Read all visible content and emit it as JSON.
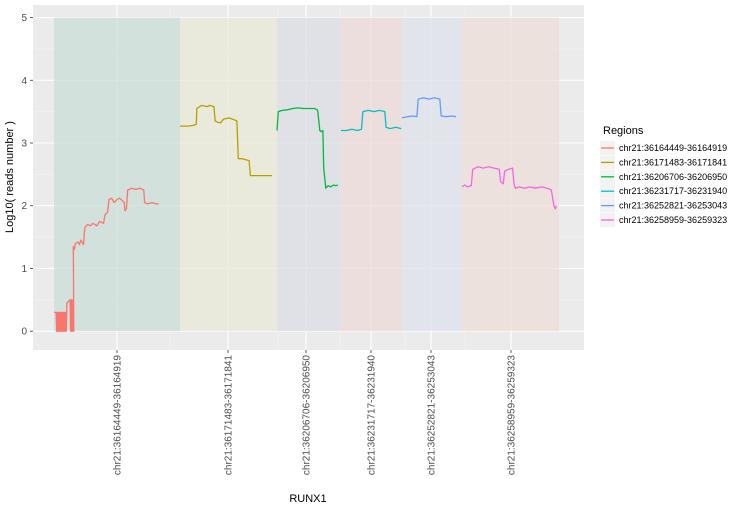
{
  "chart_data": {
    "type": "line",
    "title": "",
    "xlabel": "RUNX1",
    "ylabel": "Log10( reads number )",
    "ylim": [
      -0.3,
      5.2
    ],
    "yticks": [
      0,
      1,
      2,
      3,
      4,
      5
    ],
    "grid": true,
    "legend_title": "Regions",
    "legend_position": "right",
    "categories": [
      "chr21:36164449-36164919",
      "chr21:36171483-36171841",
      "chr21:36206706-36206950",
      "chr21:36231717-36231940",
      "chr21:36252821-36253043",
      "chr21:36258959-36259323"
    ],
    "series": [
      {
        "name": "chr21:36164449-36164919",
        "color": "#F8766D",
        "band_color": "#C9DDD7",
        "x_range": [
          0,
          470
        ],
        "points": [
          [
            0,
            0.3
          ],
          [
            8,
            0.3
          ],
          [
            10,
            0
          ],
          [
            12,
            0.3
          ],
          [
            14,
            0
          ],
          [
            16,
            0.3
          ],
          [
            18,
            0
          ],
          [
            20,
            0.3
          ],
          [
            22,
            0
          ],
          [
            24,
            0.3
          ],
          [
            26,
            0
          ],
          [
            28,
            0.3
          ],
          [
            30,
            0
          ],
          [
            32,
            0.3
          ],
          [
            34,
            0
          ],
          [
            36,
            0.3
          ],
          [
            38,
            0
          ],
          [
            40,
            0.3
          ],
          [
            42,
            0
          ],
          [
            44,
            0.3
          ],
          [
            46,
            0
          ],
          [
            48,
            0.45
          ],
          [
            60,
            0.5
          ],
          [
            62,
            0
          ],
          [
            64,
            0.5
          ],
          [
            66,
            0
          ],
          [
            68,
            0.5
          ],
          [
            70,
            0
          ],
          [
            72,
            0.3
          ],
          [
            74,
            0
          ],
          [
            72,
            1.35
          ],
          [
            76,
            1.3
          ],
          [
            80,
            1.4
          ],
          [
            90,
            1.42
          ],
          [
            95,
            1.38
          ],
          [
            100,
            1.45
          ],
          [
            110,
            1.38
          ],
          [
            115,
            1.65
          ],
          [
            125,
            1.7
          ],
          [
            135,
            1.68
          ],
          [
            145,
            1.72
          ],
          [
            160,
            1.68
          ],
          [
            170,
            1.75
          ],
          [
            185,
            1.72
          ],
          [
            190,
            1.85
          ],
          [
            200,
            1.9
          ],
          [
            205,
            2.1
          ],
          [
            215,
            2.12
          ],
          [
            225,
            2.05
          ],
          [
            235,
            2.1
          ],
          [
            245,
            2.12
          ],
          [
            255,
            2.08
          ],
          [
            262,
            2.05
          ],
          [
            265,
            1.92
          ],
          [
            270,
            1.95
          ],
          [
            275,
            2.25
          ],
          [
            290,
            2.28
          ],
          [
            305,
            2.26
          ],
          [
            320,
            2.28
          ],
          [
            335,
            2.25
          ],
          [
            338,
            2.05
          ],
          [
            350,
            2.03
          ],
          [
            365,
            2.05
          ],
          [
            380,
            2.03
          ],
          [
            390,
            2.03
          ]
        ]
      },
      {
        "name": "chr21:36171483-36171841",
        "color": "#B79F00",
        "band_color": "#E9E9D7",
        "x_range": [
          0,
          358
        ],
        "points": [
          [
            0,
            3.27
          ],
          [
            30,
            3.27
          ],
          [
            50,
            3.28
          ],
          [
            60,
            3.3
          ],
          [
            62,
            3.55
          ],
          [
            80,
            3.6
          ],
          [
            100,
            3.58
          ],
          [
            110,
            3.6
          ],
          [
            125,
            3.58
          ],
          [
            130,
            3.35
          ],
          [
            140,
            3.33
          ],
          [
            150,
            3.32
          ],
          [
            160,
            3.38
          ],
          [
            180,
            3.4
          ],
          [
            195,
            3.38
          ],
          [
            210,
            3.35
          ],
          [
            215,
            2.75
          ],
          [
            230,
            2.75
          ],
          [
            245,
            2.73
          ],
          [
            255,
            2.72
          ],
          [
            260,
            2.48
          ],
          [
            280,
            2.48
          ],
          [
            300,
            2.48
          ],
          [
            315,
            2.48
          ],
          [
            325,
            2.48
          ],
          [
            340,
            2.48
          ]
        ]
      },
      {
        "name": "chr21:36206706-36206950",
        "color": "#00BA38",
        "band_color": "#DCDDE5",
        "x_range": [
          0,
          244
        ],
        "points": [
          [
            0,
            3.2
          ],
          [
            5,
            3.5
          ],
          [
            20,
            3.52
          ],
          [
            40,
            3.53
          ],
          [
            60,
            3.55
          ],
          [
            80,
            3.56
          ],
          [
            100,
            3.55
          ],
          [
            120,
            3.55
          ],
          [
            145,
            3.55
          ],
          [
            155,
            3.52
          ],
          [
            163,
            3.2
          ],
          [
            168,
            3.18
          ],
          [
            175,
            3.2
          ],
          [
            178,
            2.6
          ],
          [
            182,
            2.45
          ],
          [
            186,
            2.28
          ],
          [
            195,
            2.32
          ],
          [
            205,
            2.3
          ],
          [
            215,
            2.33
          ],
          [
            225,
            2.32
          ],
          [
            232,
            2.33
          ]
        ]
      },
      {
        "name": "chr21:36231717-36231940",
        "color": "#00BFC4",
        "band_color": "#EEDADA",
        "x_range": [
          0,
          223
        ],
        "points": [
          [
            0,
            3.2
          ],
          [
            20,
            3.2
          ],
          [
            40,
            3.22
          ],
          [
            60,
            3.2
          ],
          [
            75,
            3.22
          ],
          [
            80,
            3.5
          ],
          [
            100,
            3.52
          ],
          [
            120,
            3.5
          ],
          [
            140,
            3.52
          ],
          [
            160,
            3.5
          ],
          [
            165,
            3.25
          ],
          [
            180,
            3.23
          ],
          [
            200,
            3.25
          ],
          [
            220,
            3.23
          ]
        ]
      },
      {
        "name": "chr21:36252821-36253043",
        "color": "#619CFF",
        "band_color": "#DDE1EA",
        "x_range": [
          0,
          222
        ],
        "points": [
          [
            0,
            3.4
          ],
          [
            20,
            3.42
          ],
          [
            40,
            3.43
          ],
          [
            55,
            3.42
          ],
          [
            60,
            3.7
          ],
          [
            80,
            3.72
          ],
          [
            100,
            3.7
          ],
          [
            120,
            3.72
          ],
          [
            140,
            3.7
          ],
          [
            145,
            3.43
          ],
          [
            165,
            3.42
          ],
          [
            185,
            3.43
          ],
          [
            200,
            3.42
          ]
        ]
      },
      {
        "name": "chr21:36258959-36259323",
        "color": "#F564E3",
        "band_color": "#EEDDDA",
        "x_range": [
          0,
          364
        ],
        "points": [
          [
            0,
            2.3
          ],
          [
            10,
            2.33
          ],
          [
            20,
            2.3
          ],
          [
            35,
            2.32
          ],
          [
            40,
            2.58
          ],
          [
            60,
            2.62
          ],
          [
            80,
            2.6
          ],
          [
            100,
            2.62
          ],
          [
            120,
            2.6
          ],
          [
            140,
            2.58
          ],
          [
            145,
            2.38
          ],
          [
            155,
            2.35
          ],
          [
            160,
            2.55
          ],
          [
            175,
            2.58
          ],
          [
            190,
            2.6
          ],
          [
            195,
            2.35
          ],
          [
            200,
            2.28
          ],
          [
            215,
            2.3
          ],
          [
            235,
            2.28
          ],
          [
            255,
            2.3
          ],
          [
            275,
            2.28
          ],
          [
            300,
            2.3
          ],
          [
            320,
            2.28
          ],
          [
            335,
            2.25
          ],
          [
            345,
            2.0
          ],
          [
            350,
            1.95
          ],
          [
            354,
            2.0
          ]
        ]
      }
    ]
  }
}
